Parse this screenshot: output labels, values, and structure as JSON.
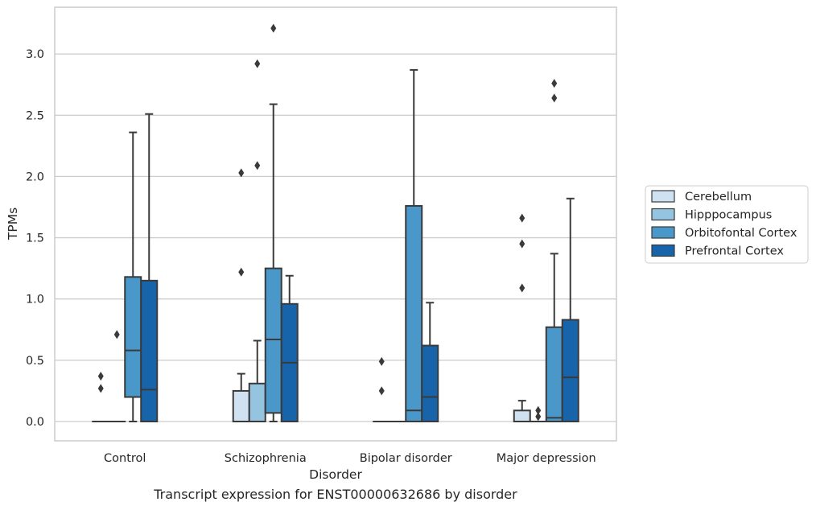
{
  "caption": "Transcript expression for ENST00000632686 by disorder",
  "chart_data": {
    "type": "box",
    "xlabel": "Disorder",
    "ylabel": "TPMs",
    "categories": [
      "Control",
      "Schizophrenia",
      "Bipolar disorder",
      "Major depression"
    ],
    "ylim": [
      -0.16,
      3.38
    ],
    "yticks": [
      0.0,
      0.5,
      1.0,
      1.5,
      2.0,
      2.5,
      3.0
    ],
    "ytick_labels": [
      "0.0",
      "0.5",
      "1.0",
      "1.5",
      "2.0",
      "2.5",
      "3.0"
    ],
    "grid": "horizontal",
    "legend_position": "right",
    "series": [
      {
        "name": "Cerebellum",
        "color": "#d0e1f2",
        "boxes": [
          {
            "min": 0.0,
            "q1": 0.0,
            "median": 0.0,
            "q3": 0.0,
            "max": 0.0,
            "outliers": [
              0.37,
              0.27
            ]
          },
          {
            "min": 0.0,
            "q1": 0.0,
            "median": 0.0,
            "q3": 0.25,
            "max": 0.39,
            "outliers": [
              2.03,
              1.22
            ]
          },
          {
            "min": 0.0,
            "q1": 0.0,
            "median": 0.0,
            "q3": 0.0,
            "max": 0.0,
            "outliers": [
              0.49,
              0.25
            ]
          },
          {
            "min": 0.0,
            "q1": 0.0,
            "median": 0.0,
            "q3": 0.09,
            "max": 0.17,
            "outliers": [
              1.66,
              1.45,
              1.09
            ]
          }
        ]
      },
      {
        "name": "Hipppocampus",
        "color": "#94c4df",
        "boxes": [
          {
            "min": 0.0,
            "q1": 0.0,
            "median": 0.0,
            "q3": 0.0,
            "max": 0.0,
            "outliers": [
              0.71
            ]
          },
          {
            "min": 0.0,
            "q1": 0.0,
            "median": 0.0,
            "q3": 0.31,
            "max": 0.66,
            "outliers": [
              2.92,
              2.09
            ]
          },
          {
            "min": 0.0,
            "q1": 0.0,
            "median": 0.0,
            "q3": 0.0,
            "max": 0.0,
            "outliers": []
          },
          {
            "min": 0.0,
            "q1": 0.0,
            "median": 0.0,
            "q3": 0.0,
            "max": 0.0,
            "outliers": [
              0.09,
              0.04
            ]
          }
        ]
      },
      {
        "name": "Orbitofontal Cortex",
        "color": "#4a98c9",
        "boxes": [
          {
            "min": 0.0,
            "q1": 0.2,
            "median": 0.58,
            "q3": 1.18,
            "max": 2.36,
            "outliers": []
          },
          {
            "min": 0.0,
            "q1": 0.07,
            "median": 0.67,
            "q3": 1.25,
            "max": 2.59,
            "outliers": [
              3.21
            ]
          },
          {
            "min": 0.0,
            "q1": 0.0,
            "median": 0.09,
            "q3": 1.76,
            "max": 2.87,
            "outliers": []
          },
          {
            "min": 0.0,
            "q1": 0.0,
            "median": 0.03,
            "q3": 0.77,
            "max": 1.37,
            "outliers": [
              2.76,
              2.64
            ]
          }
        ]
      },
      {
        "name": "Prefrontal Cortex",
        "color": "#1764ab",
        "boxes": [
          {
            "min": 0.0,
            "q1": 0.0,
            "median": 0.26,
            "q3": 1.15,
            "max": 2.51,
            "outliers": []
          },
          {
            "min": 0.0,
            "q1": 0.0,
            "median": 0.48,
            "q3": 0.96,
            "max": 1.19,
            "outliers": []
          },
          {
            "min": 0.0,
            "q1": 0.0,
            "median": 0.2,
            "q3": 0.62,
            "max": 0.97,
            "outliers": []
          },
          {
            "min": 0.0,
            "q1": 0.0,
            "median": 0.36,
            "q3": 0.83,
            "max": 1.82,
            "outliers": []
          }
        ]
      }
    ]
  }
}
